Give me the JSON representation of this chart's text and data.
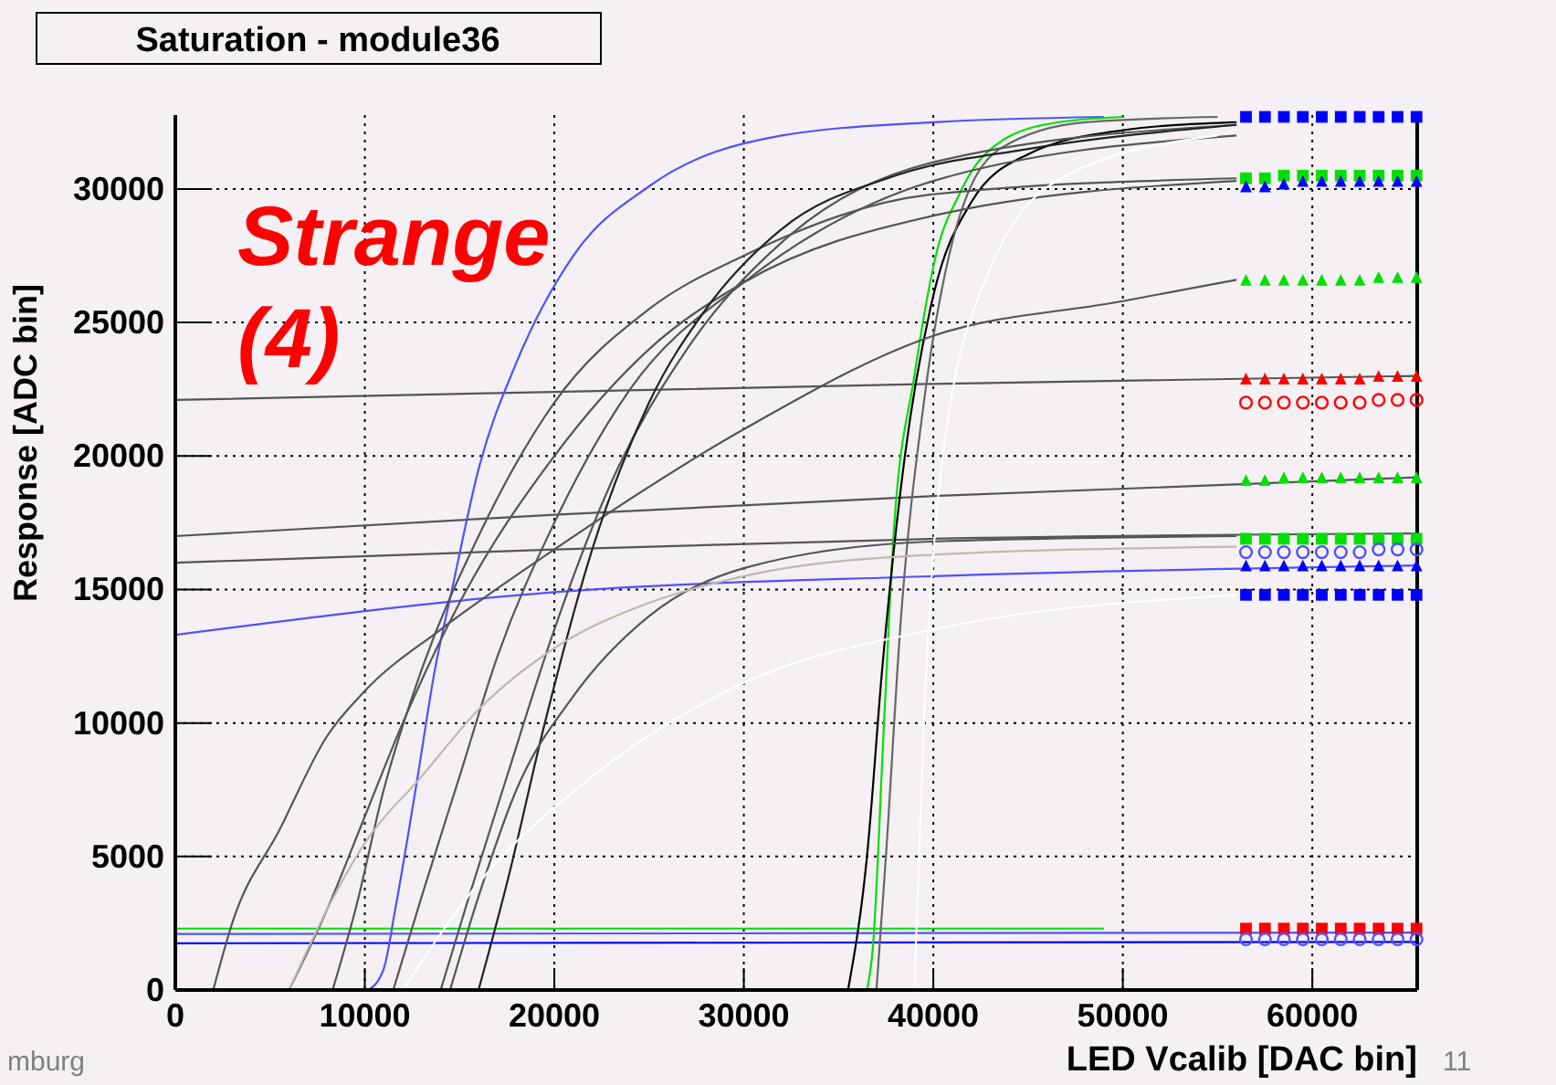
{
  "chart_data": {
    "type": "line",
    "title": "Saturation - module36",
    "xlabel": "LED Vcalib [DAC bin]",
    "ylabel": "Response [ADC bin]",
    "annotations": [
      "Strange (4)",
      "mburg",
      "11"
    ],
    "xlim": [
      0,
      65535
    ],
    "ylim": [
      0,
      32768
    ],
    "xticks": [
      0,
      10000,
      20000,
      30000,
      40000,
      50000,
      60000
    ],
    "yticks": [
      0,
      5000,
      10000,
      15000,
      20000,
      25000,
      30000
    ],
    "grid": true,
    "marker": "none",
    "line_style": "solid",
    "series": [
      {
        "color": "#555555",
        "x": [
          0,
          20000,
          40000,
          65535
        ],
        "values": [
          22100,
          22400,
          22700,
          23000
        ]
      },
      {
        "color": "#555555",
        "x": [
          0,
          20000,
          40000,
          65535
        ],
        "values": [
          17000,
          17800,
          18500,
          19200
        ]
      },
      {
        "color": "#555555",
        "x": [
          0,
          20000,
          40000,
          65535
        ],
        "values": [
          16000,
          16500,
          16900,
          17100
        ]
      },
      {
        "color": "#5050ff",
        "x": [
          0,
          20000,
          40000,
          65535
        ],
        "values": [
          13300,
          14900,
          15500,
          15900
        ]
      },
      {
        "color": "#00e000",
        "x": [
          0,
          49000
        ],
        "values": [
          2300,
          2300
        ]
      },
      {
        "color": "#5050ff",
        "x": [
          0,
          65535
        ],
        "values": [
          2100,
          2150
        ]
      },
      {
        "color": "#0000ff",
        "x": [
          0,
          65535
        ],
        "values": [
          1750,
          1800
        ]
      },
      {
        "color": "#5050ff",
        "x": [
          10200,
          11000,
          11600,
          12700,
          13700,
          14600,
          16000,
          18000,
          21000,
          25000,
          32000,
          40000,
          49000
        ],
        "values": [
          0,
          800,
          3000,
          7600,
          12000,
          15000,
          19500,
          23500,
          27500,
          30100,
          32000,
          32500,
          32700
        ]
      },
      {
        "color": "#00e000",
        "x": [
          36500,
          36800,
          37400,
          37900,
          39000,
          40200,
          41300,
          42600,
          45800,
          50000
        ],
        "values": [
          0,
          1500,
          10000,
          17000,
          23000,
          27700,
          29700,
          31200,
          32400,
          32700
        ]
      },
      {
        "color": "#000000",
        "x": [
          35500,
          36500,
          37300,
          38500,
          40000,
          42000,
          45000,
          50000,
          56000
        ],
        "values": [
          0,
          5000,
          12000,
          20000,
          26000,
          29500,
          31300,
          32200,
          32500
        ]
      },
      {
        "color": "#666666",
        "x": [
          37000,
          37500,
          38300,
          39500,
          41000,
          43500,
          48000,
          55000
        ],
        "values": [
          0,
          5000,
          14000,
          22000,
          28000,
          31500,
          32500,
          32700
        ]
      },
      {
        "color": "#555555",
        "x": [
          2000,
          3000,
          5500,
          8000,
          10000,
          14000,
          20000,
          30000,
          40000,
          50000,
          56000
        ],
        "values": [
          0,
          2500,
          6000,
          9500,
          11200,
          13500,
          16500,
          21000,
          24500,
          25800,
          26600
        ]
      },
      {
        "color": "#555555",
        "x": [
          6000,
          8000,
          10000,
          12000,
          15000,
          20000,
          25000,
          30000,
          40000,
          56000
        ],
        "values": [
          0,
          3000,
          6500,
          10000,
          14500,
          20000,
          24000,
          26500,
          29000,
          30300
        ]
      },
      {
        "color": "#555555",
        "x": [
          8300,
          9500,
          11000,
          13000,
          16000,
          20000,
          25000,
          30000,
          40000,
          56000
        ],
        "values": [
          0,
          3000,
          7500,
          12000,
          17000,
          22000,
          25500,
          27500,
          29800,
          30400
        ]
      },
      {
        "color": "#555555",
        "x": [
          11500,
          13000,
          15000,
          17000,
          20000,
          24000,
          30000,
          40000,
          56000
        ],
        "values": [
          0,
          3500,
          8000,
          12500,
          17500,
          22500,
          26500,
          30300,
          32000
        ]
      },
      {
        "color": "#555555",
        "x": [
          14000,
          15500,
          17500,
          20000,
          23000,
          27000,
          32000,
          40000,
          56000
        ],
        "values": [
          0,
          3500,
          8000,
          13500,
          19000,
          24000,
          28000,
          31000,
          32400
        ]
      },
      {
        "color": "#222222",
        "x": [
          16000,
          17500,
          19500,
          22000,
          25000,
          28000,
          32000,
          38000,
          45000,
          56000
        ],
        "values": [
          0,
          4000,
          10000,
          16500,
          22000,
          25500,
          28500,
          30500,
          31500,
          32400
        ]
      },
      {
        "color": "#555555",
        "x": [
          14500,
          16000,
          18000,
          21000,
          25000,
          30000,
          40000,
          56000
        ],
        "values": [
          0,
          3500,
          7500,
          11000,
          14000,
          15800,
          16800,
          17000
        ]
      },
      {
        "color": "#c0b8b0",
        "x": [
          6000,
          8000,
          10000,
          13000,
          16000,
          20000,
          25000,
          30000,
          40000,
          56000
        ],
        "values": [
          0,
          3000,
          5500,
          8000,
          10500,
          12800,
          14500,
          15500,
          16300,
          16600
        ]
      },
      {
        "color": "#ffffff",
        "x": [
          12000,
          16000,
          22000,
          30000,
          40000,
          56000
        ],
        "values": [
          0,
          4000,
          8000,
          11500,
          13500,
          14800
        ]
      },
      {
        "color": "#ffffff",
        "x": [
          39000,
          39500,
          40500,
          43000,
          47000,
          55000
        ],
        "values": [
          0,
          10000,
          20000,
          27000,
          30500,
          32000
        ]
      },
      {
        "type": "scatter",
        "marker": "square",
        "color": "#0000ff",
        "x": [
          56500,
          57500,
          58500,
          59500,
          60500,
          61500,
          62500,
          63500,
          64500,
          65500
        ],
        "values": [
          32700,
          32700,
          32700,
          32700,
          32700,
          32700,
          32700,
          32700,
          32700,
          32700
        ]
      },
      {
        "type": "scatter",
        "marker": "square",
        "color": "#00e000",
        "x": [
          56500,
          57500,
          58500,
          59500,
          60500,
          61500,
          62500,
          63500,
          64500,
          65500
        ],
        "values": [
          30400,
          30400,
          30500,
          30500,
          30500,
          30500,
          30500,
          30500,
          30500,
          30500
        ]
      },
      {
        "type": "scatter",
        "marker": "triangle",
        "color": "#0000ff",
        "x": [
          56500,
          57500,
          58500,
          59500,
          60500,
          61500,
          62500,
          63500,
          64500,
          65500
        ],
        "values": [
          30100,
          30100,
          30200,
          30300,
          30300,
          30300,
          30300,
          30300,
          30300,
          30300
        ]
      },
      {
        "type": "scatter",
        "marker": "triangle",
        "color": "#00e000",
        "x": [
          56500,
          57500,
          58500,
          59500,
          60500,
          61500,
          62500,
          63500,
          64500,
          65500
        ],
        "values": [
          26600,
          26600,
          26600,
          26600,
          26600,
          26600,
          26600,
          26700,
          26700,
          26700
        ]
      },
      {
        "type": "scatter",
        "marker": "triangle",
        "color": "#ff0000",
        "x": [
          56500,
          57500,
          58500,
          59500,
          60500,
          61500,
          62500,
          63500,
          64500,
          65500
        ],
        "values": [
          22900,
          22900,
          22900,
          22900,
          22900,
          22900,
          22900,
          23000,
          23000,
          23000
        ]
      },
      {
        "type": "scatter",
        "marker": "circle",
        "color": "#ff0000",
        "x": [
          56500,
          57500,
          58500,
          59500,
          60500,
          61500,
          62500,
          63500,
          64500,
          65500
        ],
        "values": [
          22000,
          22000,
          22000,
          22000,
          22000,
          22000,
          22000,
          22100,
          22100,
          22100
        ]
      },
      {
        "type": "scatter",
        "marker": "triangle",
        "color": "#00e000",
        "x": [
          56500,
          57500,
          58500,
          59500,
          60500,
          61500,
          62500,
          63500,
          64500,
          65500
        ],
        "values": [
          19100,
          19100,
          19200,
          19200,
          19200,
          19200,
          19200,
          19200,
          19200,
          19200
        ]
      },
      {
        "type": "scatter",
        "marker": "square",
        "color": "#00e000",
        "x": [
          56500,
          57500,
          58500,
          59500,
          60500,
          61500,
          62500,
          63500,
          64500,
          65500
        ],
        "values": [
          16900,
          16900,
          16900,
          16900,
          16900,
          16900,
          16900,
          16900,
          16900,
          16900
        ]
      },
      {
        "type": "scatter",
        "marker": "circle",
        "color": "#5050ff",
        "x": [
          56500,
          57500,
          58500,
          59500,
          60500,
          61500,
          62500,
          63500,
          64500,
          65500
        ],
        "values": [
          16400,
          16400,
          16400,
          16400,
          16400,
          16400,
          16400,
          16500,
          16500,
          16500
        ]
      },
      {
        "type": "scatter",
        "marker": "triangle",
        "color": "#0000ff",
        "x": [
          56500,
          57500,
          58500,
          59500,
          60500,
          61500,
          62500,
          63500,
          64500,
          65500
        ],
        "values": [
          15900,
          15900,
          15900,
          15900,
          15900,
          15900,
          15900,
          15900,
          15900,
          15900
        ]
      },
      {
        "type": "scatter",
        "marker": "square",
        "color": "#0000ff",
        "x": [
          56500,
          57500,
          58500,
          59500,
          60500,
          61500,
          62500,
          63500,
          64500,
          65500
        ],
        "values": [
          14800,
          14800,
          14800,
          14800,
          14800,
          14800,
          14800,
          14800,
          14800,
          14800
        ]
      },
      {
        "type": "scatter",
        "marker": "square",
        "color": "#ff0000",
        "x": [
          56500,
          57500,
          58500,
          59500,
          60500,
          61500,
          62500,
          63500,
          64500,
          65500
        ],
        "values": [
          2300,
          2300,
          2300,
          2300,
          2300,
          2300,
          2300,
          2300,
          2300,
          2300
        ]
      },
      {
        "type": "scatter",
        "marker": "circle",
        "color": "#5050ff",
        "x": [
          56500,
          57500,
          58500,
          59500,
          60500,
          61500,
          62500,
          63500,
          64500,
          65500
        ],
        "values": [
          1900,
          1900,
          1900,
          1900,
          1900,
          1900,
          1900,
          1900,
          1900,
          1900
        ]
      }
    ]
  }
}
